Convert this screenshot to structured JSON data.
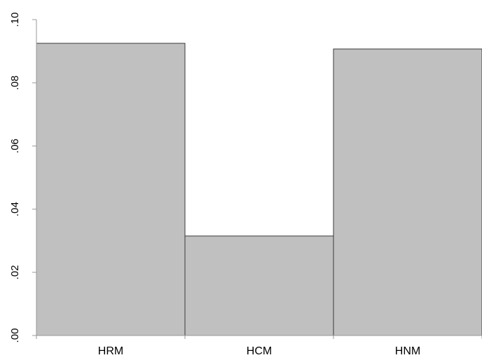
{
  "chart_data": {
    "type": "bar",
    "title": "",
    "xlabel": "",
    "ylabel": "",
    "categories": [
      "HRM",
      "HCM",
      "HNM"
    ],
    "values": [
      0.0925,
      0.0315,
      0.0907
    ],
    "ylim": [
      0,
      0.1
    ],
    "yticks": [
      0.0,
      0.02,
      0.04,
      0.06,
      0.08,
      0.1
    ],
    "ytick_labels": [
      ".00",
      ".02",
      ".04",
      ".06",
      ".08",
      ".10"
    ],
    "grid": false,
    "legend": "none",
    "colors": {
      "bar_fill": "#c0c0c0",
      "bar_stroke": "#3a3a3a",
      "axis": "#999999"
    }
  }
}
